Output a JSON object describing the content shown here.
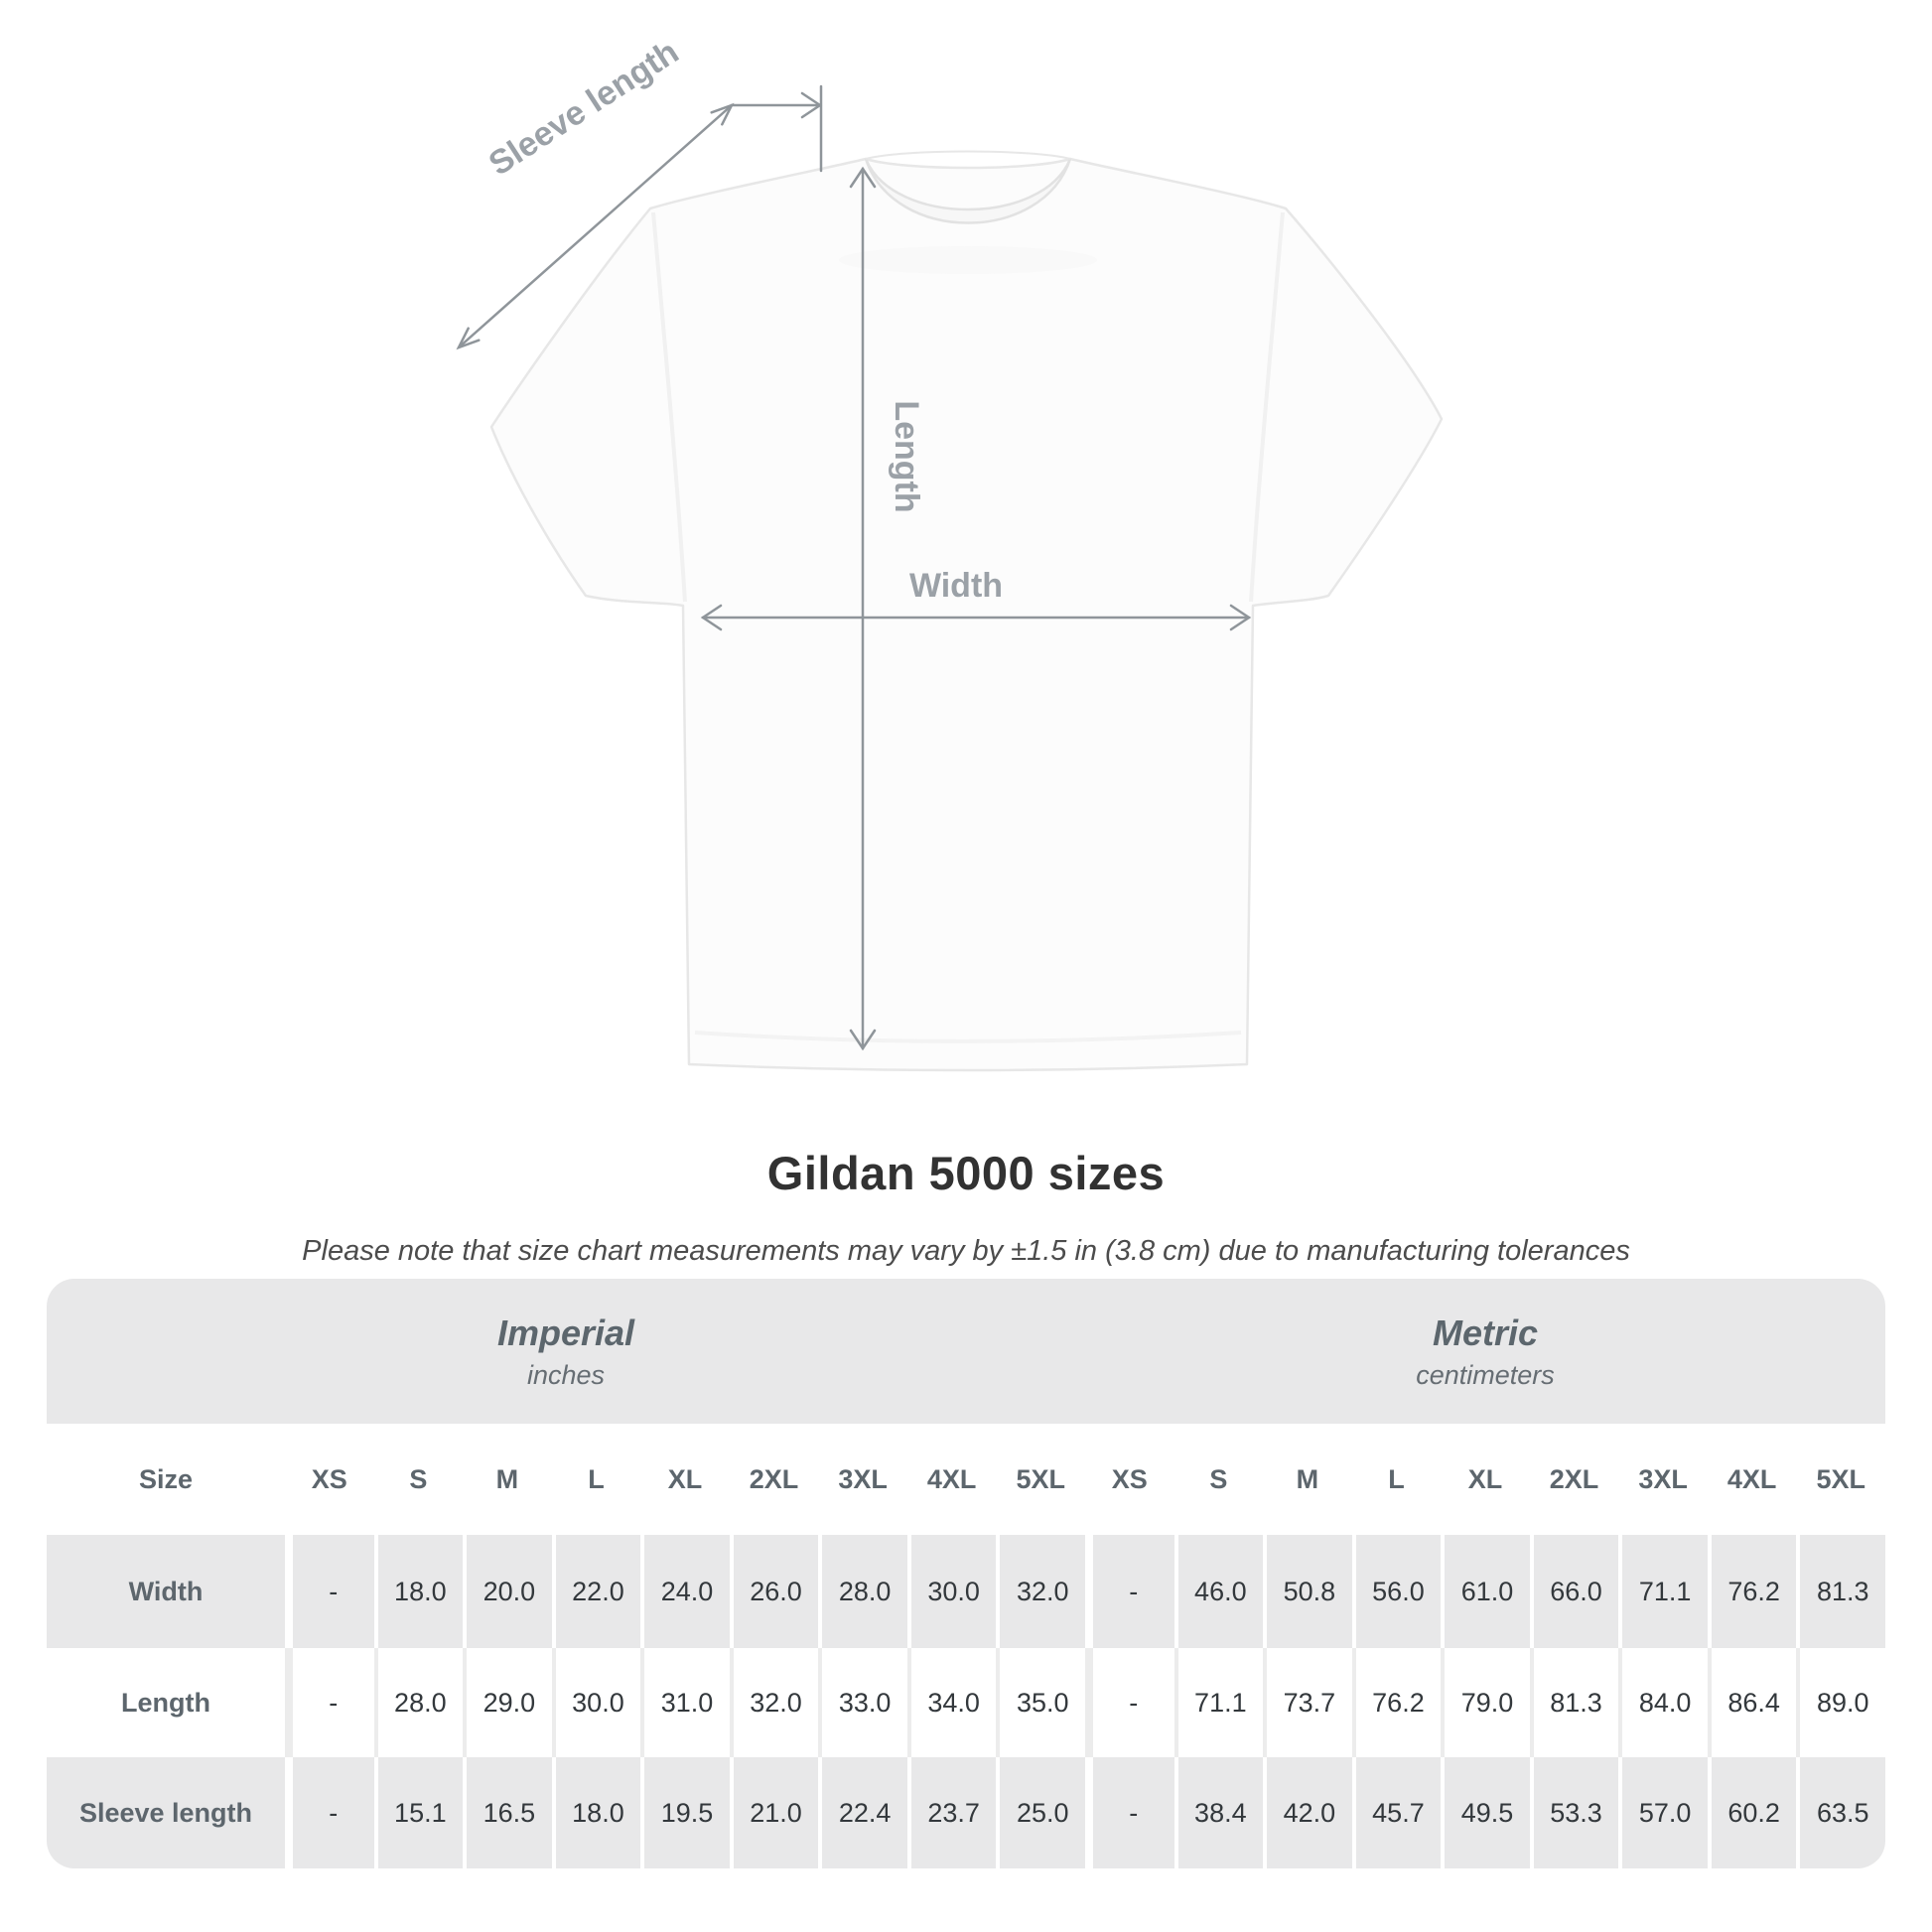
{
  "chart_data": {
    "type": "table",
    "title": "Gildan 5000 sizes",
    "subtitle": "Please note that size chart measurements may vary by ±1.5 in (3.8 cm) due to manufacturing tolerances",
    "unit_groups": [
      {
        "label": "Imperial",
        "unit": "inches"
      },
      {
        "label": "Metric",
        "unit": "centimeters"
      }
    ],
    "size_header": "Size",
    "sizes": [
      "XS",
      "S",
      "M",
      "L",
      "XL",
      "2XL",
      "3XL",
      "4XL",
      "5XL"
    ],
    "rows": [
      {
        "label": "Width",
        "imperial": [
          "-",
          "18.0",
          "20.0",
          "22.0",
          "24.0",
          "26.0",
          "28.0",
          "30.0",
          "32.0"
        ],
        "metric": [
          "-",
          "46.0",
          "50.8",
          "56.0",
          "61.0",
          "66.0",
          "71.1",
          "76.2",
          "81.3"
        ]
      },
      {
        "label": "Length",
        "imperial": [
          "-",
          "28.0",
          "29.0",
          "30.0",
          "31.0",
          "32.0",
          "33.0",
          "34.0",
          "35.0"
        ],
        "metric": [
          "-",
          "71.1",
          "73.7",
          "76.2",
          "79.0",
          "81.3",
          "84.0",
          "86.4",
          "89.0"
        ]
      },
      {
        "label": "Sleeve length",
        "imperial": [
          "-",
          "15.1",
          "16.5",
          "18.0",
          "19.5",
          "21.0",
          "22.4",
          "23.7",
          "25.0"
        ],
        "metric": [
          "-",
          "38.4",
          "42.0",
          "45.7",
          "49.5",
          "53.3",
          "57.0",
          "60.2",
          "63.5"
        ]
      }
    ]
  },
  "diagram": {
    "labels": {
      "sleeve_length": "Sleeve length",
      "length": "Length",
      "width": "Width"
    }
  },
  "colors": {
    "band_bg": "#e8e8e9",
    "separator_on_gray": "#ffffff",
    "separator_on_white": "#ececec",
    "header_text": "#5d666d",
    "data_text": "#33383c",
    "title_text": "#323232",
    "note_text": "#4c4c4c",
    "measure_line": "#8f959a",
    "measure_label": "#9ba1a7",
    "shirt_outline": "#e7e7e7"
  }
}
